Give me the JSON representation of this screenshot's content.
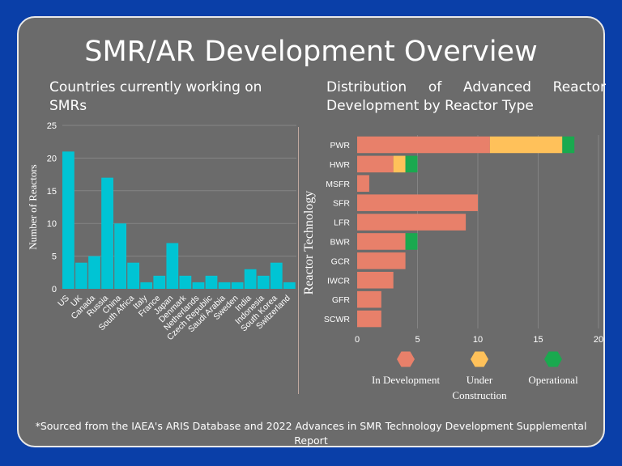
{
  "title": "SMR/AR Development Overview",
  "left_subtitle": "Countries currently working on SMRs",
  "right_subtitle": "Distribution of Advanced Reactor Development by Reactor Type",
  "footnote": "*Sourced from the IAEA's ARIS Database and 2022 Advances in SMR Technology Development Supplemental Report",
  "colors": {
    "bar": "#00c4d4",
    "in_development": "#e8806a",
    "under_construction": "#ffc15a",
    "operational": "#1aa94f",
    "text": "#ffffff",
    "grid": "#848484"
  },
  "chart_data": [
    {
      "type": "bar",
      "ylabel": "Number of Reactors",
      "xlabel": "",
      "ylim": [
        0,
        25
      ],
      "yticks": [
        0,
        5,
        10,
        15,
        20,
        25
      ],
      "grid": true,
      "categories": [
        "US",
        "UK",
        "Canada",
        "Russia",
        "China",
        "South Africa",
        "Italy",
        "France",
        "Japan",
        "Denmark",
        "Netherlands",
        "Czech Republic",
        "Saudi Arabia",
        "Sweden",
        "India",
        "Indonesia",
        "South Korea",
        "Switzerland"
      ],
      "values": [
        21,
        4,
        5,
        17,
        10,
        4,
        1,
        2,
        7,
        2,
        1,
        2,
        1,
        1,
        3,
        2,
        4,
        1
      ]
    },
    {
      "type": "bar",
      "orientation": "horizontal",
      "stacked": true,
      "ylabel": "Reactor Technology",
      "xlabel": "",
      "xlim": [
        0,
        20
      ],
      "xticks": [
        0,
        5,
        10,
        15,
        20
      ],
      "grid": true,
      "legend_position": "bottom",
      "categories": [
        "PWR",
        "HWR",
        "MSFR",
        "SFR",
        "LFR",
        "BWR",
        "GCR",
        "IWCR",
        "GFR",
        "SCWR"
      ],
      "series": [
        {
          "name": "In Development",
          "values": [
            11,
            3,
            1,
            10,
            9,
            4,
            4,
            3,
            2,
            2
          ]
        },
        {
          "name": "Under Construction",
          "values": [
            6,
            1,
            0,
            0,
            0,
            0,
            0,
            0,
            0,
            0
          ]
        },
        {
          "name": "Operational",
          "values": [
            1,
            1,
            0,
            0,
            0,
            1,
            0,
            0,
            0,
            0
          ]
        }
      ]
    }
  ]
}
